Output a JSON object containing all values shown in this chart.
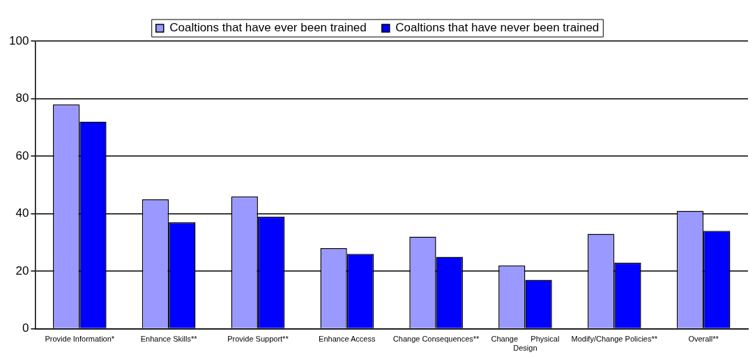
{
  "chart_data": {
    "type": "bar",
    "categories": [
      "Provide Information*",
      "Enhance Skills**",
      "Provide Support**",
      "Enhance Access",
      "Change Consequences**",
      "Change Physical Design",
      "Modify/Change Policies**",
      "Overall**"
    ],
    "series": [
      {
        "name": "Coaltions that have ever been trained",
        "color": "#9999ff",
        "values": [
          78,
          45,
          46,
          28,
          32,
          22,
          33,
          41
        ]
      },
      {
        "name": "Coaltions that have never been trained",
        "color": "#0000ff",
        "values": [
          72,
          37,
          39,
          26,
          25,
          17,
          23,
          34
        ]
      }
    ],
    "ylim": [
      0,
      100
    ],
    "yticks": [
      0,
      20,
      40,
      60,
      80,
      100
    ],
    "grid": "y",
    "legend": "top"
  }
}
